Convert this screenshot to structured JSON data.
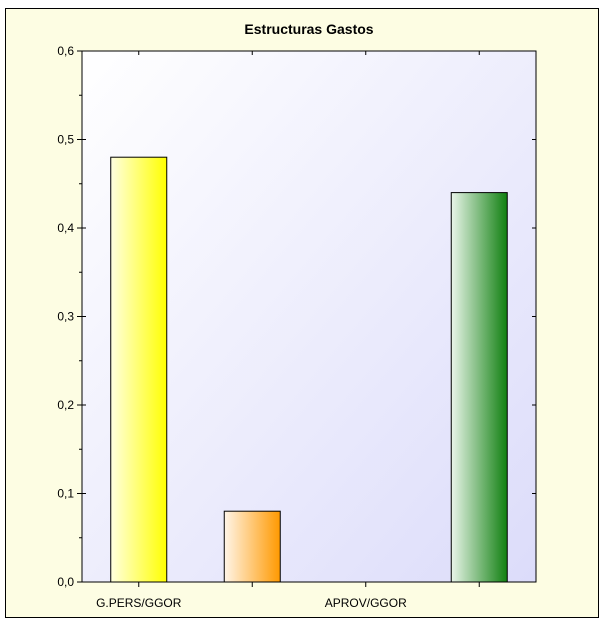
{
  "chart_data": {
    "type": "bar",
    "title": "Estructuras Gastos",
    "xlabel": "",
    "ylabel": "",
    "categories": [
      "G.PERS/GGOR",
      "",
      "APROV/GGOR",
      ""
    ],
    "values": [
      0.48,
      0.08,
      0.0,
      0.44
    ],
    "ylim": [
      0,
      0.6
    ],
    "yticks": [
      0.0,
      0.1,
      0.2,
      0.3,
      0.4,
      0.5,
      0.6
    ],
    "ytick_labels": [
      "0,0",
      "0,1",
      "0,2",
      "0,3",
      "0,4",
      "0,5",
      "0,6"
    ],
    "grid": false,
    "legend": "none",
    "bar_colors": [
      {
        "light": "#ffffe0",
        "dark": "#ffff00"
      },
      {
        "light": "#fff5e8",
        "dark": "#ff9900"
      },
      {
        "light": "#ffffff",
        "dark": "#ffffff"
      },
      {
        "light": "#eaf5ea",
        "dark": "#108010"
      }
    ],
    "plot_background": [
      "#ffffff",
      "#dcdcfa"
    ],
    "frame_background": "#fdfde3"
  }
}
